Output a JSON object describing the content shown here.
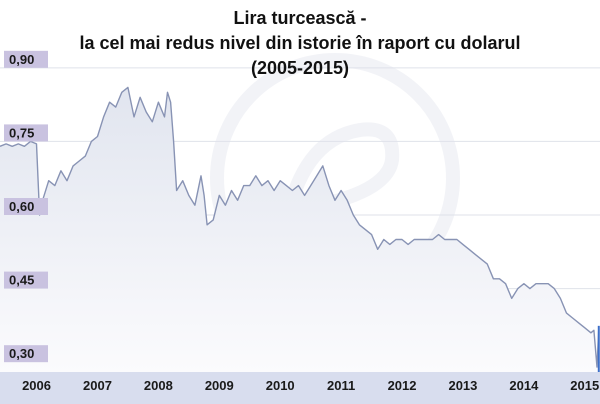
{
  "chart_data": {
    "type": "area",
    "title": [
      "Lira turcească -",
      "la cel mai redus nivel din istorie în raport cu dolarul",
      "(2005-2015)"
    ],
    "xlabel": "",
    "ylabel": "",
    "xlim": [
      2005.4,
      2015.25
    ],
    "ylim": [
      0.28,
      0.92
    ],
    "yticks": [
      {
        "value": 0.9,
        "label": "0,90"
      },
      {
        "value": 0.75,
        "label": "0,75"
      },
      {
        "value": 0.6,
        "label": "0,60"
      },
      {
        "value": 0.45,
        "label": "0,45"
      },
      {
        "value": 0.3,
        "label": "0,30"
      }
    ],
    "xticks": [
      {
        "value": 2006,
        "label": "2006"
      },
      {
        "value": 2007,
        "label": "2007"
      },
      {
        "value": 2008,
        "label": "2008"
      },
      {
        "value": 2009,
        "label": "2009"
      },
      {
        "value": 2010,
        "label": "2010"
      },
      {
        "value": 2011,
        "label": "2011"
      },
      {
        "value": 2012,
        "label": "2012"
      },
      {
        "value": 2013,
        "label": "2013"
      },
      {
        "value": 2014,
        "label": "2014"
      },
      {
        "value": 2015,
        "label": "2015"
      }
    ],
    "grid": true,
    "series": [
      {
        "x": [
          2005.4,
          2005.5,
          2005.6,
          2005.7,
          2005.8,
          2005.9,
          2006.0,
          2006.05,
          2006.1,
          2006.2,
          2006.3,
          2006.4,
          2006.5,
          2006.6,
          2006.7,
          2006.8,
          2006.9,
          2007.0,
          2007.1,
          2007.2,
          2007.3,
          2007.4,
          2007.5,
          2007.6,
          2007.7,
          2007.8,
          2007.9,
          2008.0,
          2008.1,
          2008.15,
          2008.2,
          2008.25,
          2008.3,
          2008.4,
          2008.5,
          2008.6,
          2008.7,
          2008.75,
          2008.8,
          2008.9,
          2009.0,
          2009.1,
          2009.2,
          2009.3,
          2009.4,
          2009.5,
          2009.6,
          2009.7,
          2009.8,
          2009.9,
          2010.0,
          2010.1,
          2010.2,
          2010.3,
          2010.4,
          2010.5,
          2010.6,
          2010.7,
          2010.8,
          2010.9,
          2011.0,
          2011.1,
          2011.2,
          2011.3,
          2011.4,
          2011.5,
          2011.6,
          2011.7,
          2011.8,
          2011.9,
          2012.0,
          2012.1,
          2012.2,
          2012.3,
          2012.4,
          2012.5,
          2012.6,
          2012.7,
          2012.8,
          2012.9,
          2013.0,
          2013.1,
          2013.2,
          2013.3,
          2013.4,
          2013.5,
          2013.6,
          2013.7,
          2013.8,
          2013.9,
          2014.0,
          2014.1,
          2014.2,
          2014.3,
          2014.4,
          2014.5,
          2014.6,
          2014.7,
          2014.8,
          2014.9,
          2015.0,
          2015.1,
          2015.15,
          2015.2,
          2015.23
        ],
        "y": [
          0.74,
          0.745,
          0.74,
          0.745,
          0.74,
          0.75,
          0.745,
          0.6,
          0.63,
          0.67,
          0.66,
          0.69,
          0.67,
          0.7,
          0.71,
          0.72,
          0.75,
          0.76,
          0.8,
          0.83,
          0.82,
          0.85,
          0.86,
          0.8,
          0.84,
          0.81,
          0.79,
          0.83,
          0.8,
          0.85,
          0.83,
          0.75,
          0.65,
          0.67,
          0.64,
          0.62,
          0.68,
          0.64,
          0.58,
          0.59,
          0.64,
          0.62,
          0.65,
          0.63,
          0.66,
          0.66,
          0.68,
          0.66,
          0.67,
          0.65,
          0.67,
          0.66,
          0.65,
          0.66,
          0.64,
          0.66,
          0.68,
          0.7,
          0.66,
          0.63,
          0.65,
          0.63,
          0.6,
          0.58,
          0.57,
          0.56,
          0.53,
          0.55,
          0.54,
          0.55,
          0.55,
          0.54,
          0.55,
          0.55,
          0.55,
          0.55,
          0.56,
          0.55,
          0.55,
          0.55,
          0.54,
          0.53,
          0.52,
          0.51,
          0.5,
          0.47,
          0.47,
          0.46,
          0.43,
          0.45,
          0.46,
          0.45,
          0.46,
          0.46,
          0.46,
          0.45,
          0.43,
          0.4,
          0.39,
          0.38,
          0.37,
          0.36,
          0.365,
          0.29,
          0.37
        ]
      }
    ]
  },
  "colors": {
    "line": "#8893b4",
    "area_top": "#e1e5ef",
    "area_bottom": "#fbfbfd",
    "grid": "#dfe2ea",
    "axis_band": "#d8ddee",
    "tick_box": "#c9c2e0",
    "end_marker": "#3d6fc9"
  }
}
